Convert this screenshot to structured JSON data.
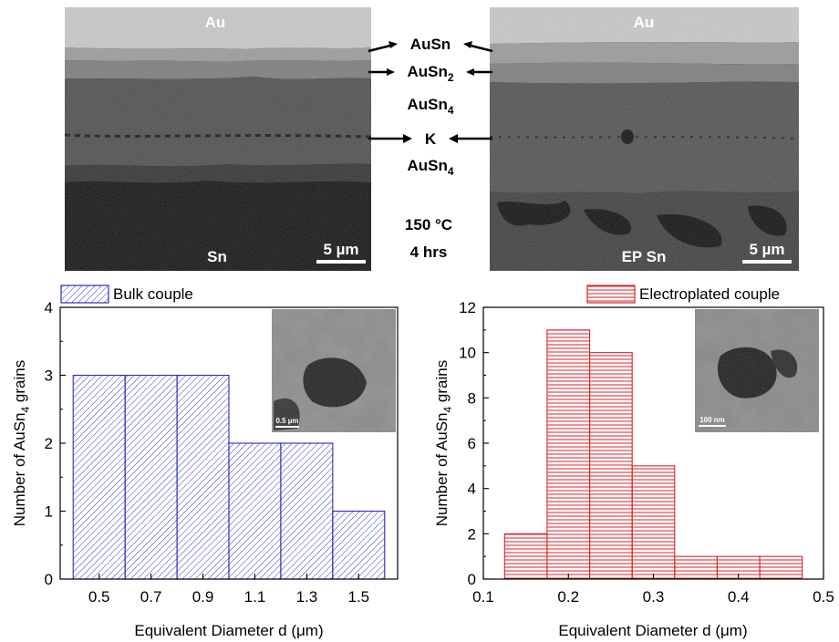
{
  "micrographs": {
    "left": {
      "top_label": "Au",
      "bottom_label": "Sn",
      "scale_bar": "5 µm"
    },
    "right": {
      "top_label": "Au",
      "bottom_label": "EP Sn",
      "scale_bar": "5 µm"
    },
    "layer_labels": [
      "AuSn",
      "AuSn",
      "AuSn",
      "K",
      "AuSn"
    ],
    "layer_subscripts": [
      "",
      "2",
      "4",
      "",
      "4"
    ],
    "condition_temp": "150 °C",
    "condition_time": "4 hrs"
  },
  "chart_data": [
    {
      "type": "bar",
      "legend": "Bulk couple",
      "legend_position": "top-left",
      "categories": [
        "0.5",
        "0.7",
        "0.9",
        "1.1",
        "1.3",
        "1.5"
      ],
      "bin_edges": [
        0.4,
        0.6,
        0.8,
        1.0,
        1.2,
        1.4,
        1.6
      ],
      "values": [
        3,
        3,
        3,
        2,
        2,
        1
      ],
      "xlabel": "Equivalent Diameter d (μm)",
      "ylabel_main": "Number of AuSn",
      "ylabel_sub": "4",
      "ylabel_tail": " grains",
      "ylim": [
        0,
        4
      ],
      "yticks": [
        "0",
        "1",
        "2",
        "3",
        "4"
      ],
      "color": "#2b2fb8",
      "hatch": "diagonal",
      "inset_scale": "0.5 µm"
    },
    {
      "type": "bar",
      "legend": "Electroplated couple",
      "legend_position": "top-right",
      "bin_edges": [
        0.125,
        0.175,
        0.225,
        0.275,
        0.325,
        0.375,
        0.425,
        0.475
      ],
      "values": [
        2,
        11,
        10,
        5,
        1,
        1,
        1
      ],
      "xlabel": "Equivalent Diameter d (μm)",
      "ylabel_main": "Number of AuSn",
      "ylabel_sub": "4",
      "ylabel_tail": " grains",
      "ylim": [
        0,
        12
      ],
      "xlim": [
        0.1,
        0.5
      ],
      "yticks": [
        "0",
        "2",
        "4",
        "6",
        "8",
        "10",
        "12"
      ],
      "xticks": [
        "0.1",
        "0.2",
        "0.3",
        "0.4",
        "0.5"
      ],
      "color": "#d8232a",
      "hatch": "horizontal",
      "inset_scale": "100 nm"
    }
  ]
}
